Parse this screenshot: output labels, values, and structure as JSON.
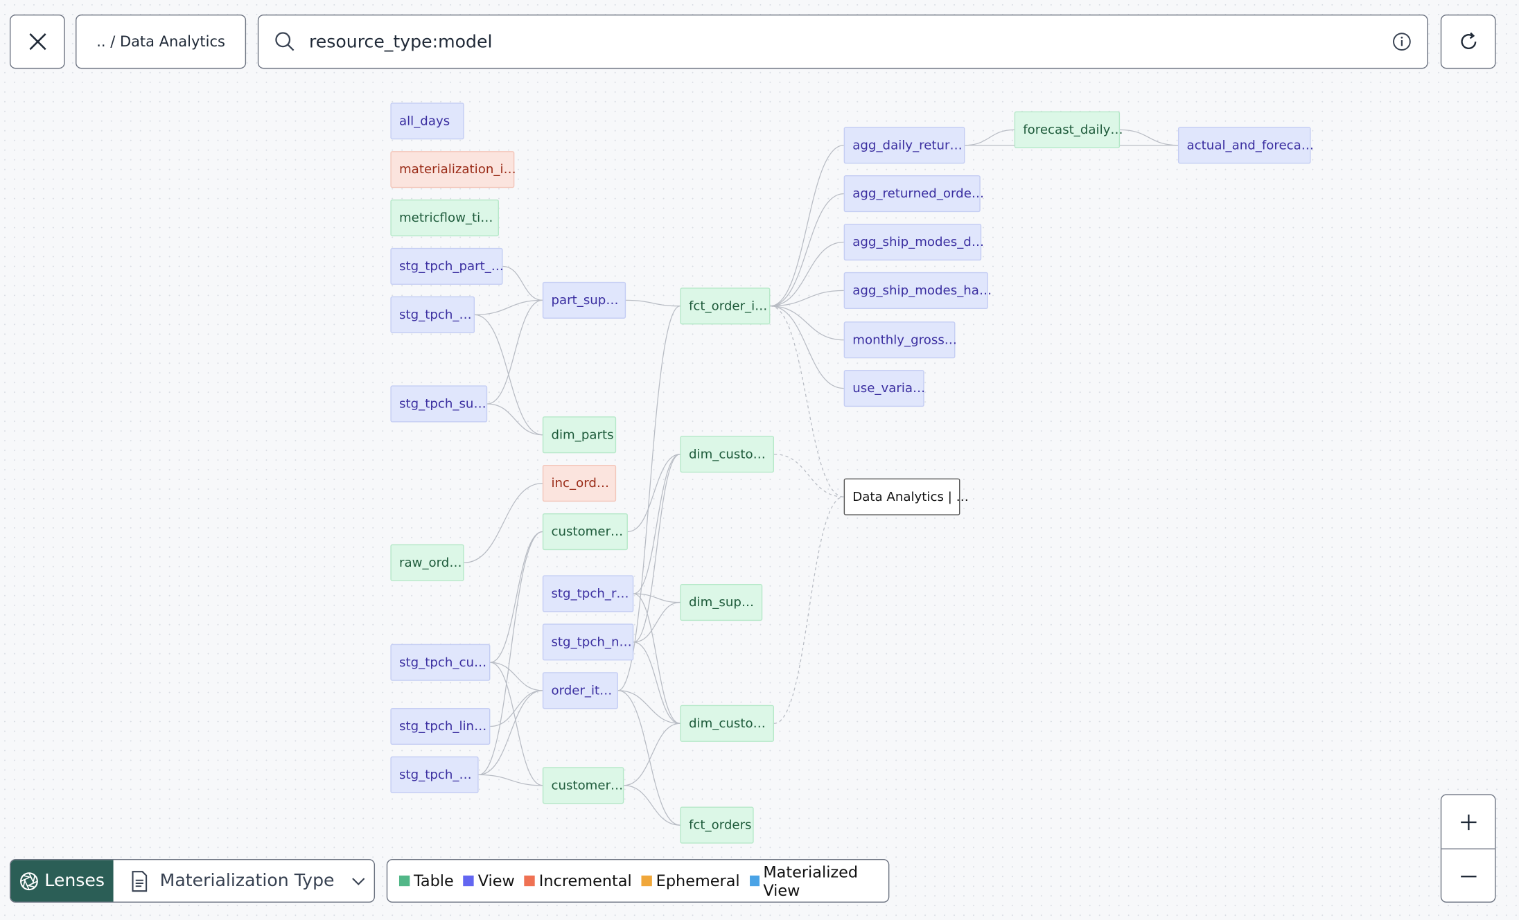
{
  "header": {
    "breadcrumb": ".. / Data Analytics",
    "search_value": "resource_type:model"
  },
  "graph": {
    "nodes": [
      {
        "id": "all_days",
        "label": "all_days",
        "type": "view"
      },
      {
        "id": "mat_i",
        "label": "materialization_i…",
        "type": "incremental"
      },
      {
        "id": "metricflow",
        "label": "metricflow_ti…",
        "type": "table"
      },
      {
        "id": "stg_part",
        "label": "stg_tpch_part_…",
        "type": "view"
      },
      {
        "id": "stg_a",
        "label": "stg_tpch_…",
        "type": "view"
      },
      {
        "id": "stg_su",
        "label": "stg_tpch_su…",
        "type": "view"
      },
      {
        "id": "raw_ord",
        "label": "raw_ord…",
        "type": "table"
      },
      {
        "id": "stg_cu",
        "label": "stg_tpch_cu…",
        "type": "view"
      },
      {
        "id": "stg_lin",
        "label": "stg_tpch_lin…",
        "type": "view"
      },
      {
        "id": "stg_b",
        "label": "stg_tpch_…",
        "type": "view"
      },
      {
        "id": "part_sup",
        "label": "part_sup…",
        "type": "view"
      },
      {
        "id": "dim_parts",
        "label": "dim_parts",
        "type": "table"
      },
      {
        "id": "inc_ord",
        "label": "inc_ord…",
        "type": "incremental"
      },
      {
        "id": "customer_a",
        "label": "customer…",
        "type": "table"
      },
      {
        "id": "stg_r",
        "label": "stg_tpch_r…",
        "type": "view"
      },
      {
        "id": "stg_n",
        "label": "stg_tpch_n…",
        "type": "view"
      },
      {
        "id": "order_it",
        "label": "order_it…",
        "type": "view"
      },
      {
        "id": "customer_b",
        "label": "customer…",
        "type": "table"
      },
      {
        "id": "fct_order_i",
        "label": "fct_order_i…",
        "type": "table"
      },
      {
        "id": "dim_custo_a",
        "label": "dim_custo…",
        "type": "table"
      },
      {
        "id": "dim_sup",
        "label": "dim_sup…",
        "type": "table"
      },
      {
        "id": "dim_custo_b",
        "label": "dim_custo…",
        "type": "table"
      },
      {
        "id": "fct_orders",
        "label": "fct_orders",
        "type": "table"
      },
      {
        "id": "agg_daily",
        "label": "agg_daily_retur…",
        "type": "view"
      },
      {
        "id": "agg_ret",
        "label": "agg_returned_orde…",
        "type": "view"
      },
      {
        "id": "agg_ship_d",
        "label": "agg_ship_modes_d…",
        "type": "view"
      },
      {
        "id": "agg_ship_ha",
        "label": "agg_ship_modes_ha…",
        "type": "view"
      },
      {
        "id": "monthly",
        "label": "monthly_gross…",
        "type": "view"
      },
      {
        "id": "use_varia",
        "label": "use_varia…",
        "type": "view"
      },
      {
        "id": "exposure",
        "label": "Data Analytics | …",
        "type": "other"
      },
      {
        "id": "forecast",
        "label": "forecast_daily…",
        "type": "table"
      },
      {
        "id": "actual",
        "label": "actual_and_foreca…",
        "type": "view"
      }
    ],
    "edges": [
      [
        "stg_part",
        "part_sup"
      ],
      [
        "stg_a",
        "part_sup"
      ],
      [
        "stg_a",
        "dim_parts"
      ],
      [
        "stg_su",
        "part_sup"
      ],
      [
        "stg_su",
        "dim_parts"
      ],
      [
        "part_sup",
        "fct_order_i"
      ],
      [
        "order_it",
        "fct_order_i"
      ],
      [
        "fct_order_i",
        "agg_daily"
      ],
      [
        "fct_order_i",
        "agg_ret"
      ],
      [
        "fct_order_i",
        "agg_ship_d"
      ],
      [
        "fct_order_i",
        "agg_ship_ha"
      ],
      [
        "fct_order_i",
        "monthly"
      ],
      [
        "fct_order_i",
        "use_varia"
      ],
      [
        "agg_daily",
        "forecast"
      ],
      [
        "agg_daily",
        "actual"
      ],
      [
        "forecast",
        "actual"
      ],
      [
        "raw_ord",
        "inc_ord"
      ],
      [
        "customer_a",
        "dim_custo_a"
      ],
      [
        "stg_r",
        "dim_custo_a"
      ],
      [
        "stg_r",
        "dim_sup"
      ],
      [
        "stg_r",
        "dim_custo_b"
      ],
      [
        "stg_n",
        "dim_custo_a"
      ],
      [
        "stg_n",
        "dim_sup"
      ],
      [
        "stg_n",
        "dim_custo_b"
      ],
      [
        "stg_cu",
        "customer_a"
      ],
      [
        "stg_cu",
        "customer_b"
      ],
      [
        "stg_cu",
        "order_it"
      ],
      [
        "stg_lin",
        "order_it"
      ],
      [
        "stg_b",
        "order_it"
      ],
      [
        "stg_b",
        "customer_b"
      ],
      [
        "stg_b",
        "customer_a"
      ],
      [
        "customer_b",
        "dim_custo_b"
      ],
      [
        "order_it",
        "fct_orders"
      ],
      [
        "customer_b",
        "fct_orders"
      ],
      [
        "order_it",
        "dim_custo_b"
      ]
    ],
    "dashed_edges": [
      [
        "fct_order_i",
        "exposure"
      ],
      [
        "dim_custo_a",
        "exposure"
      ],
      [
        "dim_custo_b",
        "exposure"
      ]
    ]
  },
  "lenses": {
    "button_label": "Lenses",
    "selected": "Materialization Type"
  },
  "legend": [
    {
      "label": "Table",
      "color": "#52b788"
    },
    {
      "label": "View",
      "color": "#6366f1"
    },
    {
      "label": "Incremental",
      "color": "#ef7153"
    },
    {
      "label": "Ephemeral",
      "color": "#f0a73a"
    },
    {
      "label": "Materialized View",
      "color": "#4aa3e6"
    }
  ]
}
